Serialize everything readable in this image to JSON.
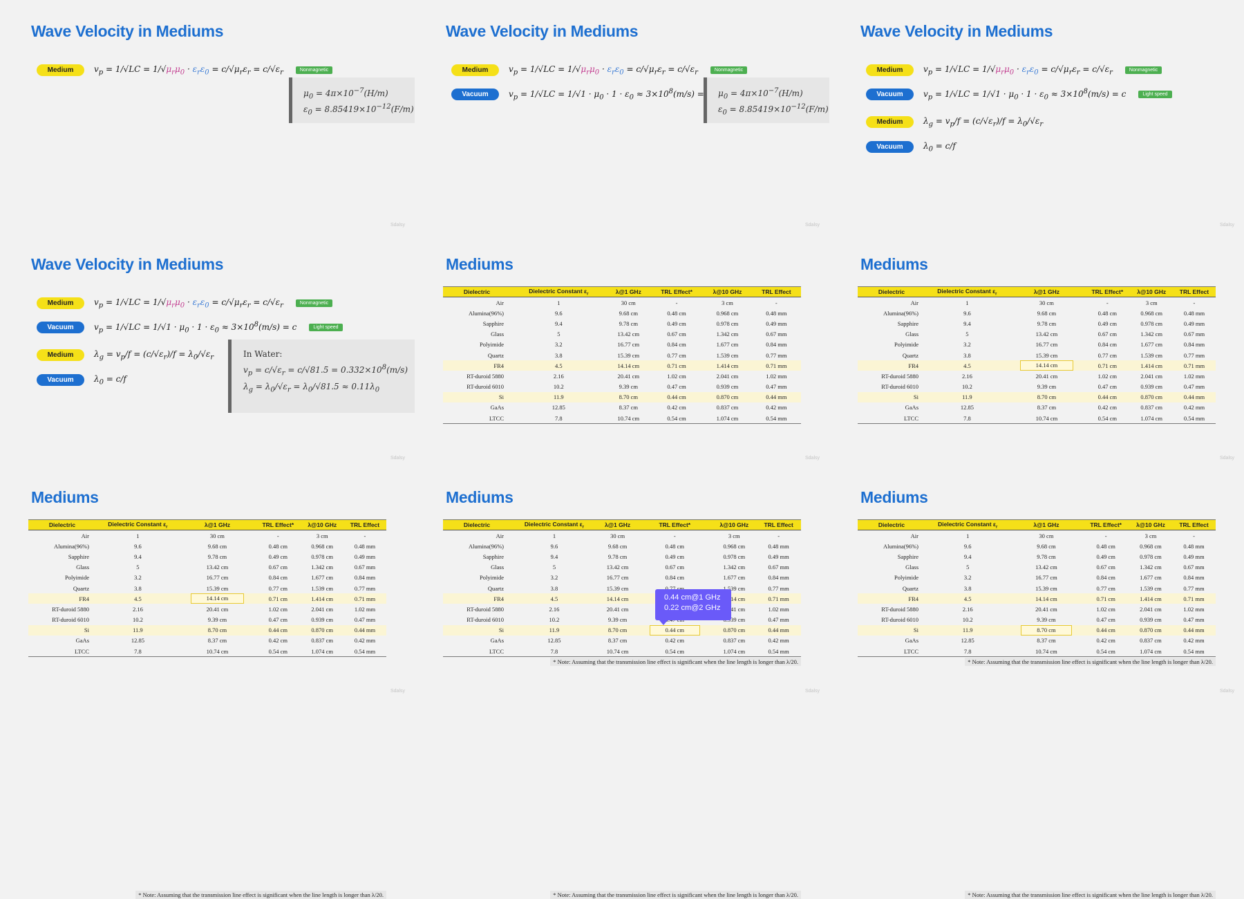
{
  "titles": {
    "wave": "Wave Velocity in Mediums",
    "mediums": "Mediums"
  },
  "watermark": "Sdalsy",
  "pills": {
    "medium": "Medium",
    "vacuum": "Vacuum"
  },
  "equations": {
    "medium_vp_part1": "v",
    "medium_vp_sub": "p",
    "medium_vp_part2": " = 1/√LC = 1/√",
    "medium_vp_mu": "μ",
    "medium_vp_mu_sub": "r",
    "medium_vp_mu0": "μ",
    "medium_vp_mu0_sub": "0",
    "medium_vp_dot": " · ",
    "medium_vp_eps": "ε",
    "medium_vp_eps_sub": "r",
    "medium_vp_eps0": "ε",
    "medium_vp_eps0_sub": "0",
    "medium_vp_tail": " = c/√μ",
    "medium_vp_tail2": "ε",
    "medium_vp_tail3": " = c/√ε",
    "vacuum_vp_full": " = 1/√LC = 1/√1 · μ",
    "vacuum_vp_mid": " · 1 · ε",
    "vacuum_vp_end": " ≈ 3×10",
    "vacuum_vp_exp": "8",
    "vacuum_vp_unit": "(m/s) = c",
    "lambda_g": "λ",
    "lambda_g_sub": "g",
    "lambda_g_rest1": " = v",
    "lambda_g_rest2": "/f = (c/√ε",
    "lambda_g_rest3": ")/f = λ",
    "lambda_g_rest4": "/√ε",
    "lambda_0": "λ",
    "lambda_0_rest": " = c/f",
    "r": "r",
    "zero": "0",
    "p": "p"
  },
  "tags": {
    "nonmagnetic": "Nonmagnetic",
    "lightspeed": "Light speed"
  },
  "constants": {
    "mu0_sym": "μ",
    "mu0_rest": " = 4π×10",
    "mu0_exp": "−7",
    "mu0_unit": "(H/m)",
    "eps0_sym": "ε",
    "eps0_rest": " = 8.85419×10",
    "eps0_exp": "−12",
    "eps0_unit": "(F/m)",
    "zero": "0"
  },
  "water": {
    "heading": "In Water:",
    "line1_a": "v",
    "line1_sub": "p",
    "line1_b": " =  c/√ε",
    "line1_c": "r",
    "line1_d": " = c/√81.5 = 0.332×10",
    "line1_exp": "8",
    "line1_e": "(m/s)",
    "line2_a": "λ",
    "line2_sub": "g",
    "line2_b": " = λ",
    "line2_c": "0",
    "line2_d": "/√ε",
    "line2_e": "r",
    "line2_f": " = λ",
    "line2_g": "0",
    "line2_h": "/√81.5 ≈ 0.11λ",
    "line2_i": "0"
  },
  "table": {
    "headers": [
      "Dielectric",
      "Dielectric Constant εr",
      "λ@1 GHz",
      "TRL Effect*",
      "λ@10 GHz",
      "TRL Effect"
    ],
    "rows": [
      [
        "Air",
        "1",
        "30 cm",
        "-",
        "3 cm",
        "-"
      ],
      [
        "Alumina(96%)",
        "9.6",
        "9.68 cm",
        "0.48 cm",
        "0.968 cm",
        "0.48 mm"
      ],
      [
        "Sapphire",
        "9.4",
        "9.78 cm",
        "0.49 cm",
        "0.978 cm",
        "0.49 mm"
      ],
      [
        "Glass",
        "5",
        "13.42 cm",
        "0.67 cm",
        "1.342 cm",
        "0.67 mm"
      ],
      [
        "Polyimide",
        "3.2",
        "16.77 cm",
        "0.84 cm",
        "1.677 cm",
        "0.84 mm"
      ],
      [
        "Quartz",
        "3.8",
        "15.39 cm",
        "0.77 cm",
        "1.539 cm",
        "0.77 mm"
      ],
      [
        "FR4",
        "4.5",
        "14.14 cm",
        "0.71 cm",
        "1.414 cm",
        "0.71 mm"
      ],
      [
        "RT-duroid 5880",
        "2.16",
        "20.41 cm",
        "1.02 cm",
        "2.041 cm",
        "1.02 mm"
      ],
      [
        "RT-duroid 6010",
        "10.2",
        "9.39 cm",
        "0.47 cm",
        "0.939 cm",
        "0.47 mm"
      ],
      [
        "Si",
        "11.9",
        "8.70 cm",
        "0.44 cm",
        "0.870 cm",
        "0.44 mm"
      ],
      [
        "GaAs",
        "12.85",
        "8.37 cm",
        "0.42 cm",
        "0.837 cm",
        "0.42 mm"
      ],
      [
        "LTCC",
        "7.8",
        "10.74 cm",
        "0.54 cm",
        "1.074 cm",
        "0.54 mm"
      ]
    ],
    "note": "* Note: Assuming that the transmission line effect is significant when the line length is longer than λ/20."
  },
  "tooltip": {
    "line1": "0.44 cm@1 GHz",
    "line2": "0.22 cm@2 GHz"
  }
}
